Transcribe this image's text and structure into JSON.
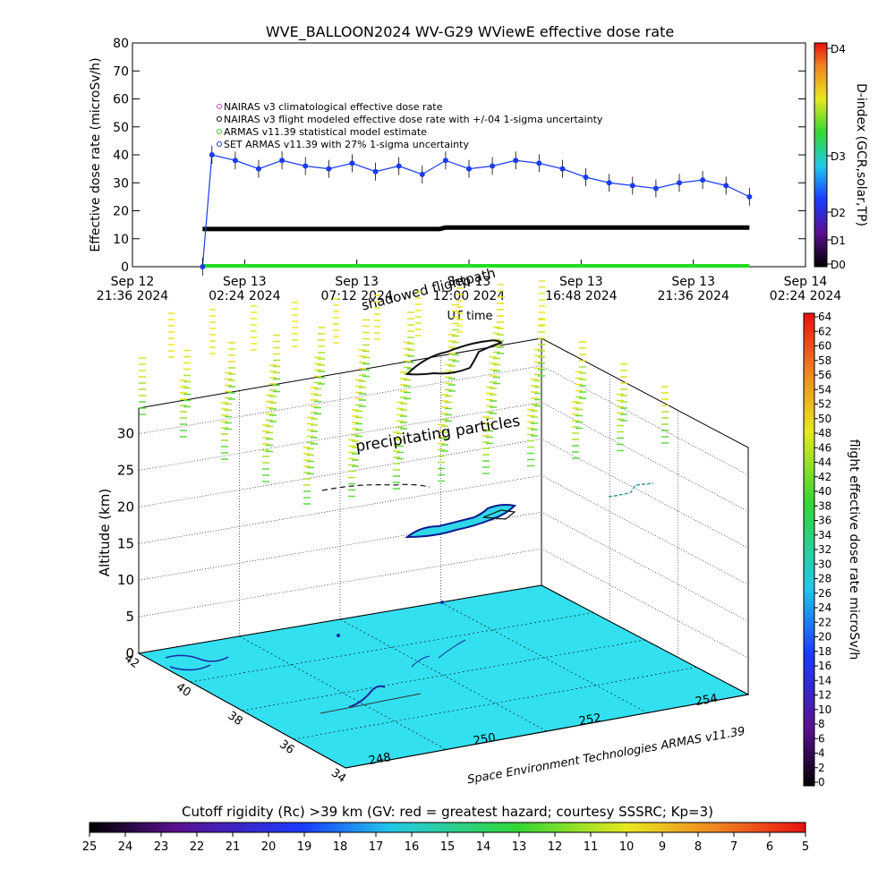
{
  "top_chart": {
    "title": "WVE_BALLOON2024 WV-G29 WViewE effective dose rate",
    "ylabel": "Effective dose rate (microSv/h)",
    "xlabel": "UT time",
    "yticks": [
      "0",
      "10",
      "20",
      "30",
      "40",
      "50",
      "60",
      "70",
      "80"
    ],
    "xticks": [
      {
        "l1": "Sep 12",
        "l2": "21:36 2024"
      },
      {
        "l1": "Sep 13",
        "l2": "02:24 2024"
      },
      {
        "l1": "Sep 13",
        "l2": "07:12 2024"
      },
      {
        "l1": "Sep 13",
        "l2": "12:00 2024"
      },
      {
        "l1": "Sep 13",
        "l2": "16:48 2024"
      },
      {
        "l1": "Sep 13",
        "l2": "21:36 2024"
      },
      {
        "l1": "Sep 14",
        "l2": "02:24 2024"
      }
    ],
    "legend": [
      "NAIRAS v3 climatological effective dose rate",
      "NAIRAS v3 flight modeled effective dose rate with +/-04 1-sigma uncertainty",
      "ARMAS v11.39 statistical model estimate",
      "SET ARMAS v11.39 with 27% 1-sigma uncertainty"
    ],
    "dindex_label": "D-index (GCR,solar,TP)",
    "dindex_ticks": [
      "D4",
      "D3",
      "D2",
      "D1",
      "D0"
    ],
    "overlay_text": "shadowed flightpath",
    "colors": {
      "series": "#1a3cf0",
      "baseline": "#000000",
      "model": "#22dd22",
      "axis": "#000000"
    }
  },
  "chart_data": [
    {
      "type": "line",
      "title": "WVE_BALLOON2024 WV-G29 WViewE effective dose rate",
      "xlabel": "UT time",
      "ylabel": "Effective dose rate (microSv/h)",
      "xlim": [
        "2024-09-12 21:36",
        "2024-09-14 02:24"
      ],
      "ylim": [
        0,
        80
      ],
      "series": [
        {
          "name": "SET ARMAS v11.39 with 27% 1-sigma uncertainty",
          "x": [
            "2024-09-13 00:36",
            "2024-09-13 01:00",
            "2024-09-13 02:00",
            "2024-09-13 03:00",
            "2024-09-13 04:00",
            "2024-09-13 05:00",
            "2024-09-13 06:00",
            "2024-09-13 07:00",
            "2024-09-13 08:00",
            "2024-09-13 09:00",
            "2024-09-13 10:00",
            "2024-09-13 11:00",
            "2024-09-13 12:00",
            "2024-09-13 13:00",
            "2024-09-13 14:00",
            "2024-09-13 15:00",
            "2024-09-13 16:00",
            "2024-09-13 17:00",
            "2024-09-13 18:00",
            "2024-09-13 19:00",
            "2024-09-13 20:00",
            "2024-09-13 21:00",
            "2024-09-13 22:00",
            "2024-09-13 23:00",
            "2024-09-14 00:00"
          ],
          "y": [
            0,
            40,
            38,
            35,
            38,
            36,
            35,
            37,
            34,
            36,
            33,
            38,
            35,
            36,
            38,
            37,
            35,
            32,
            30,
            29,
            28,
            30,
            31,
            29,
            25
          ]
        },
        {
          "name": "NAIRAS v3 flight modeled effective dose rate with +/-04 1-sigma uncertainty",
          "x": [
            "2024-09-13 00:36",
            "2024-09-13 10:45",
            "2024-09-13 11:00",
            "2024-09-14 00:00"
          ],
          "y": [
            13.5,
            13.5,
            14,
            14
          ]
        },
        {
          "name": "ARMAS v11.39 statistical model estimate",
          "x": [
            "2024-09-13 00:36",
            "2024-09-14 00:00"
          ],
          "y": [
            0,
            0
          ]
        }
      ]
    },
    {
      "type": "scatter",
      "xlabel": "",
      "ylabel": "Altitude (km)",
      "zticks": [
        "0",
        "5",
        "10",
        "15",
        "20",
        "25",
        "30"
      ],
      "lat_ticks": [
        "34",
        "36",
        "38",
        "40",
        "42"
      ],
      "lon_ticks": [
        "248",
        "250",
        "252",
        "254"
      ]
    }
  ],
  "bottom_chart": {
    "zlabel": "Altitude (km)",
    "annotation": "precipitating particles",
    "credit": "Space Environment Technologies ARMAS v11.39",
    "right_colorbar_label": "flight effective dose rate microSv/h",
    "right_colorbar_ticks": [
      "64",
      "62",
      "60",
      "58",
      "56",
      "54",
      "52",
      "50",
      "48",
      "46",
      "44",
      "42",
      "40",
      "38",
      "36",
      "34",
      "32",
      "30",
      "28",
      "26",
      "24",
      "22",
      "20",
      "18",
      "16",
      "14",
      "12",
      "10",
      "8",
      "6",
      "4",
      "2",
      "0"
    ],
    "bottom_caption": "Cutoff rigidity (Rc) >39 km (GV: red = greatest hazard; courtesy SSSRC; Kp=3)",
    "bottom_colorbar_ticks": [
      "25",
      "24",
      "23",
      "22",
      "21",
      "20",
      "19",
      "18",
      "17",
      "16",
      "15",
      "14",
      "13",
      "12",
      "11",
      "10",
      "9",
      "8",
      "7",
      "6",
      "5"
    ],
    "colors": {
      "floor": "#33e0f0",
      "floor_mark": "#1a2aa0",
      "flight": "#222222"
    }
  }
}
